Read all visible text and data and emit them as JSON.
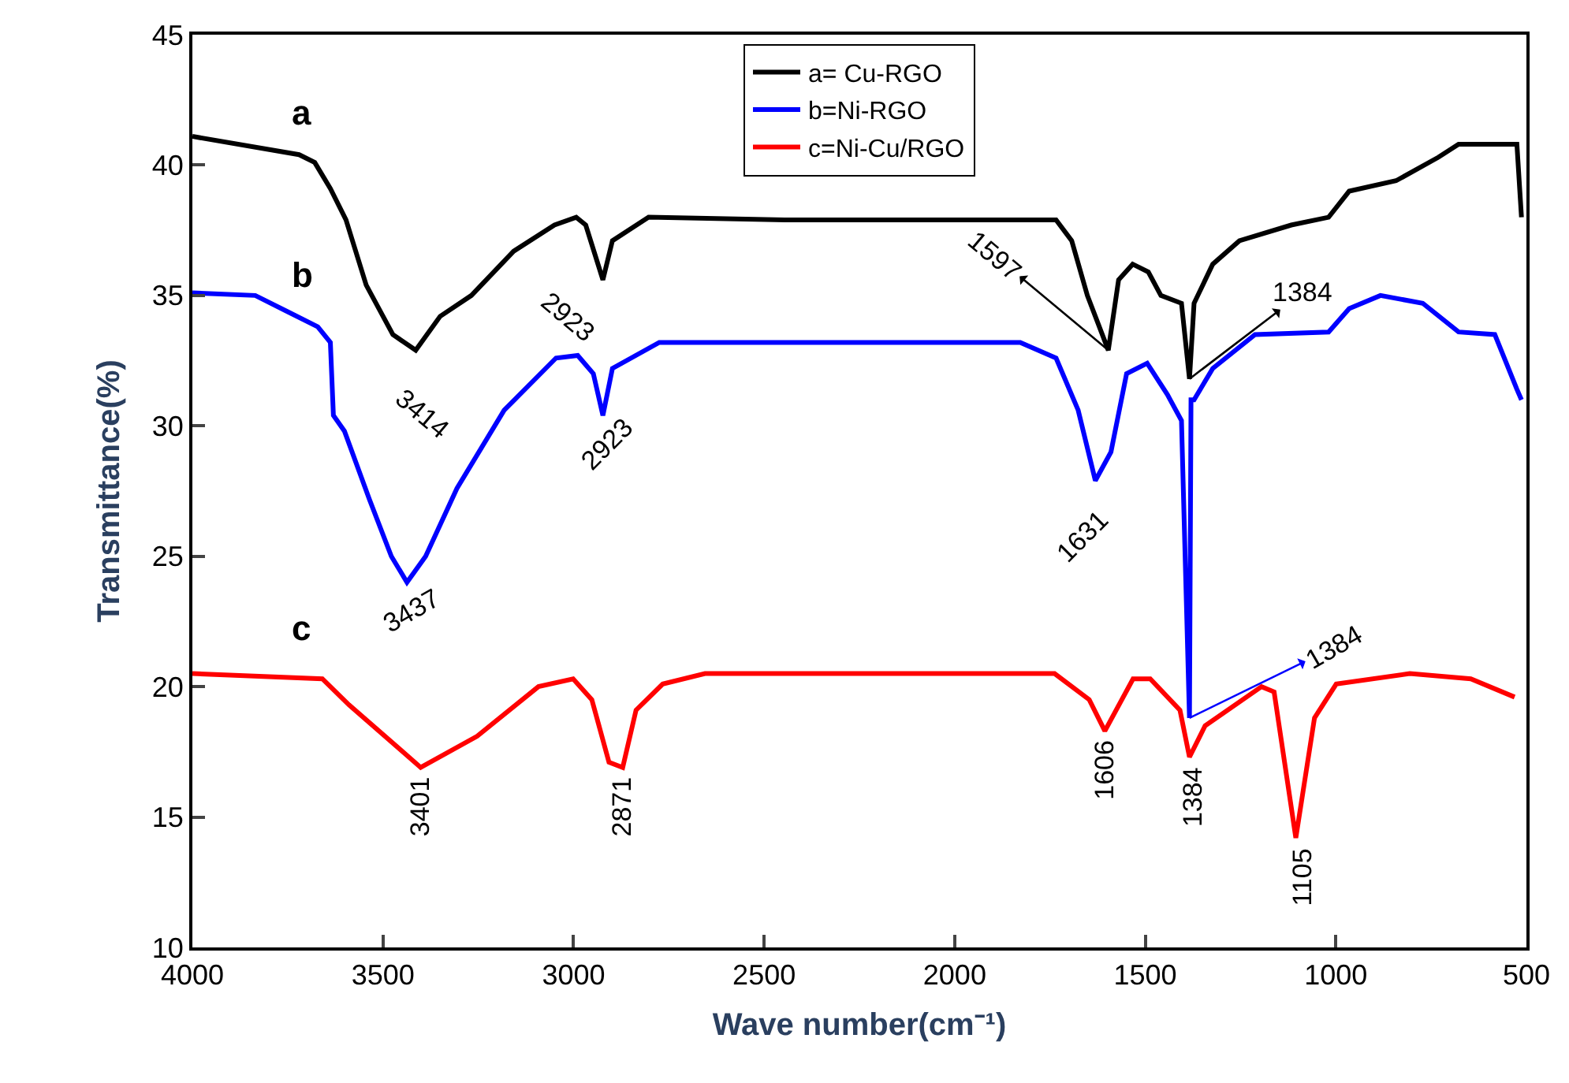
{
  "chart_data": {
    "type": "line",
    "xlabel": "Wave number(cm⁻¹)",
    "ylabel": "Transmittance(%)",
    "xlim": [
      4000,
      500
    ],
    "xticks": [
      4000,
      3500,
      3000,
      2500,
      2000,
      1500,
      1000,
      500
    ],
    "ylim": [
      10,
      45
    ],
    "yticks": [
      10,
      15,
      20,
      25,
      30,
      35,
      40,
      45
    ],
    "legend": "top",
    "marker": "none",
    "line_style": "solid",
    "series": [
      {
        "name": "a= Cu-RGO",
        "color": "#000000",
        "x": [
          4000,
          3720,
          3679,
          3638,
          3597,
          3544,
          3474,
          3414,
          3350,
          3268,
          3157,
          3050,
          2993,
          2968,
          2923,
          2898,
          2803,
          2446,
          1734,
          1693,
          1652,
          1597,
          1570,
          1533,
          1492,
          1459,
          1405,
          1384,
          1372,
          1323,
          1253,
          1117,
          1019,
          965,
          842,
          731,
          678,
          525,
          513
        ],
        "values": [
          41.1,
          40.4,
          40.1,
          39.1,
          37.9,
          35.4,
          33.5,
          32.9,
          34.2,
          35.0,
          36.7,
          37.7,
          38.0,
          37.7,
          35.6,
          37.1,
          38.0,
          37.9,
          37.9,
          37.1,
          35.0,
          32.9,
          35.6,
          36.2,
          35.9,
          35.0,
          34.7,
          31.8,
          34.7,
          36.2,
          37.1,
          37.7,
          38.0,
          39.0,
          39.4,
          40.3,
          40.8,
          40.8,
          38.0
        ]
      },
      {
        "name": "b=Ni-RGO",
        "color": "#0000ff",
        "x": [
          4000,
          3835,
          3753,
          3671,
          3638,
          3630,
          3601,
          3536,
          3478,
          3437,
          3388,
          3306,
          3182,
          3046,
          2989,
          2948,
          2923,
          2898,
          2775,
          1828,
          1734,
          1676,
          1631,
          1590,
          1549,
          1495,
          1442,
          1405,
          1384,
          1380,
          1372,
          1323,
          1212,
          1019,
          965,
          883,
          772,
          678,
          583,
          525,
          513
        ],
        "values": [
          35.1,
          35.0,
          34.4,
          33.8,
          33.2,
          30.4,
          29.8,
          27.2,
          25.0,
          24.0,
          25.0,
          27.6,
          30.6,
          32.6,
          32.7,
          32.0,
          30.4,
          32.2,
          33.2,
          33.2,
          32.6,
          30.6,
          27.9,
          29.0,
          32.0,
          32.4,
          31.2,
          30.2,
          18.8,
          31.0,
          31.0,
          32.2,
          33.5,
          33.6,
          34.5,
          35.0,
          34.7,
          33.6,
          33.5,
          31.4,
          31.0
        ]
      },
      {
        "name": "c=Ni-Cu/RGO",
        "color": "#ff0000",
        "x": [
          4000,
          3659,
          3589,
          3401,
          3253,
          3092,
          3001,
          2952,
          2907,
          2871,
          2836,
          2766,
          2655,
          1738,
          1647,
          1606,
          1532,
          1487,
          1409,
          1384,
          1343,
          1195,
          1162,
          1105,
          1056,
          999,
          806,
          646,
          531
        ],
        "values": [
          20.5,
          20.3,
          19.3,
          16.9,
          18.1,
          20.0,
          20.3,
          19.5,
          17.1,
          16.9,
          19.1,
          20.1,
          20.5,
          20.5,
          19.5,
          18.3,
          20.3,
          20.3,
          19.1,
          17.3,
          18.5,
          20.0,
          19.8,
          14.2,
          18.8,
          20.1,
          20.5,
          20.3,
          19.6
        ]
      }
    ],
    "annotations": [
      "a",
      "b",
      "c",
      {
        "text": "3414",
        "x": 3414,
        "y": 32.9
      },
      {
        "text": "2923",
        "x": 2923,
        "y": 35.6
      },
      {
        "text": "2923",
        "x": 2923,
        "y": 30.4
      },
      {
        "text": "3437",
        "x": 3437,
        "y": 24.0
      },
      {
        "text": "1631",
        "x": 1631,
        "y": 27.9
      },
      {
        "text": "1597",
        "x": 1597,
        "y": 32.9
      },
      {
        "text": "1384",
        "x": 1384,
        "y": 31.8
      },
      {
        "text": "3401",
        "x": 3401,
        "y": 16.9
      },
      {
        "text": "2871",
        "x": 2871,
        "y": 16.9
      },
      {
        "text": "1606",
        "x": 1606,
        "y": 18.3
      },
      {
        "text": "1384",
        "x": 1384,
        "y": 17.3
      },
      {
        "text": "1105",
        "x": 1105,
        "y": 14.2
      },
      {
        "text": "1384",
        "x": 1384,
        "y": 18.8
      }
    ]
  }
}
